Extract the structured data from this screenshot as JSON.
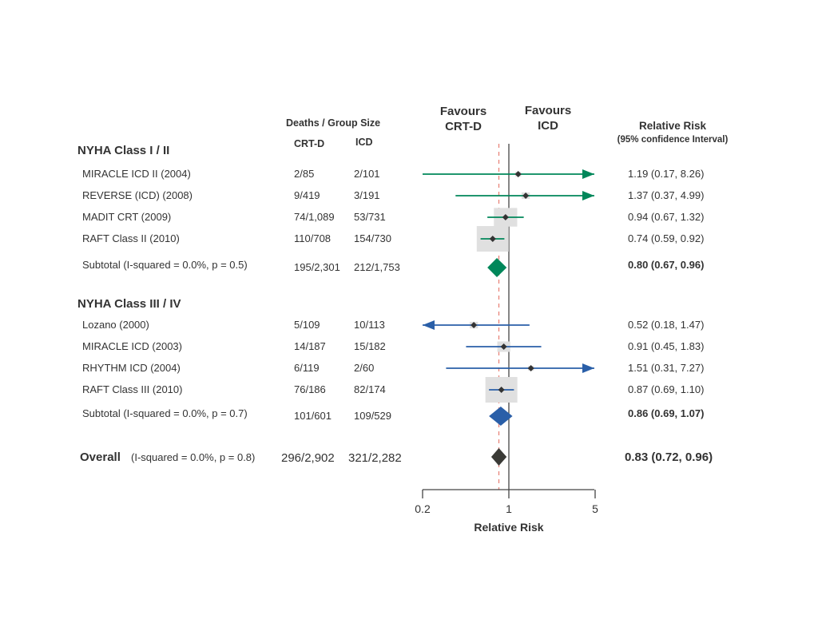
{
  "colors": {
    "group1": "#00875a",
    "group2": "#2a5fa8",
    "overall": "#3a3a36",
    "null_line": "#444444",
    "overall_line": "#e8857a",
    "weight_box": "#e0e0e0",
    "text": "#333333"
  },
  "headers": {
    "deaths": "Deaths / Group Size",
    "crtd": "CRT-D",
    "icd": "ICD",
    "favours_left": [
      "Favours",
      "CRT-D"
    ],
    "favours_right": [
      "Favours",
      "ICD"
    ],
    "rr_title": "Relative Risk",
    "rr_sub": "(95% confidence Interval)"
  },
  "chart_data": {
    "type": "forest",
    "xlabel": "Relative Risk",
    "xscale": "log",
    "xlim": [
      0.2,
      5
    ],
    "xticks": [
      "0.2",
      "1",
      "5"
    ],
    "null_value": 1,
    "overall_line_value": 0.83,
    "groups": [
      {
        "title": "NYHA Class I / II",
        "color_key": "group1",
        "studies": [
          {
            "name": "MIRACLE ICD II (2004)",
            "crtd": "2/85",
            "icd": "2/101",
            "rr": 1.19,
            "lo": 0.17,
            "hi": 8.26,
            "ci_text": "1.19 (0.17, 8.26)",
            "weight": 1
          },
          {
            "name": "REVERSE (ICD) (2008)",
            "crtd": "9/419",
            "icd": "3/191",
            "rr": 1.37,
            "lo": 0.37,
            "hi": 4.99,
            "ci_text": "1.37 (0.37, 4.99)",
            "weight": 2
          },
          {
            "name": "MADIT CRT (2009)",
            "crtd": "74/1,089",
            "icd": "53/731",
            "rr": 0.94,
            "lo": 0.67,
            "hi": 1.32,
            "ci_text": "0.94 (0.67, 1.32)",
            "weight": 16
          },
          {
            "name": "RAFT Class II (2010)",
            "crtd": "110/708",
            "icd": "154/730",
            "rr": 0.74,
            "lo": 0.59,
            "hi": 0.92,
            "ci_text": "0.74 (0.59, 0.92)",
            "weight": 30
          }
        ],
        "subtotal": {
          "label": "Subtotal  (I-squared = 0.0%, p = 0.5)",
          "crtd": "195/2,301",
          "icd": "212/1,753",
          "rr": 0.8,
          "lo": 0.67,
          "hi": 0.96,
          "ci_text": "0.80 (0.67, 0.96)"
        }
      },
      {
        "title": "NYHA Class III / IV",
        "color_key": "group2",
        "studies": [
          {
            "name": "Lozano (2000)",
            "crtd": "5/109",
            "icd": "10/113",
            "rr": 0.52,
            "lo": 0.18,
            "hi": 1.47,
            "ci_text": "0.52 (0.18, 1.47)",
            "weight": 2
          },
          {
            "name": "MIRACLE ICD (2003)",
            "crtd": "14/187",
            "icd": "15/182",
            "rr": 0.91,
            "lo": 0.45,
            "hi": 1.83,
            "ci_text": "0.91 (0.45, 1.83)",
            "weight": 5
          },
          {
            "name": "RHYTHM ICD (2004)",
            "crtd": "6/119",
            "icd": "2/60",
            "rr": 1.51,
            "lo": 0.31,
            "hi": 7.27,
            "ci_text": "1.51 (0.31, 7.27)",
            "weight": 1
          },
          {
            "name": "RAFT Class III (2010)",
            "crtd": "76/186",
            "icd": "82/174",
            "rr": 0.87,
            "lo": 0.69,
            "hi": 1.1,
            "ci_text": "0.87 (0.69, 1.10)",
            "weight": 30
          }
        ],
        "subtotal": {
          "label": "Subtotal  (I-squared = 0.0%, p = 0.7)",
          "crtd": "101/601",
          "icd": "109/529",
          "rr": 0.86,
          "lo": 0.69,
          "hi": 1.07,
          "ci_text": "0.86 (0.69, 1.07)"
        }
      }
    ],
    "overall": {
      "label": "Overall",
      "stats": "(I-squared = 0.0%, p = 0.8)",
      "crtd": "296/2,902",
      "icd": "321/2,282",
      "rr": 0.83,
      "lo": 0.72,
      "hi": 0.96,
      "ci_text": "0.83 (0.72, 0.96)"
    }
  }
}
